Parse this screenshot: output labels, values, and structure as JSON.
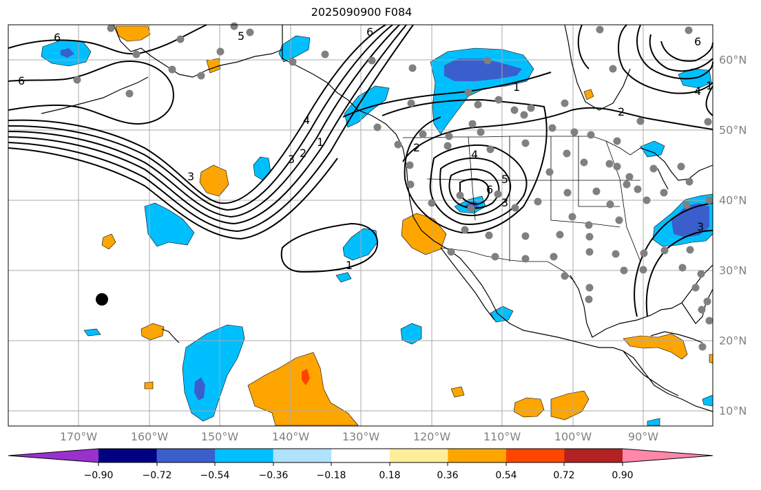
{
  "title": "2025090900 F084",
  "lon_labels": [
    "170°W",
    "160°W",
    "150°W",
    "140°W",
    "130°W",
    "120°W",
    "110°W",
    "100°W",
    "90°W"
  ],
  "lat_labels": [
    "60°N",
    "50°N",
    "40°N",
    "30°N",
    "20°N",
    "10°N"
  ],
  "colorbar": {
    "tick_labels": [
      "−0.90",
      "−0.72",
      "−0.54",
      "−0.36",
      "−0.18",
      "0.18",
      "0.36",
      "0.54",
      "0.72",
      "0.90"
    ],
    "colors": [
      "#9932cc",
      "#000080",
      "#3a5fcd",
      "#00bfff",
      "#b0e2ff",
      "#ffffff",
      "#ffee99",
      "#ffa500",
      "#ff4500",
      "#b22222",
      "#ff88aa"
    ]
  },
  "contour_labels": [
    "6",
    "6",
    "6",
    "5",
    "6",
    "4",
    "3",
    "2",
    "1",
    "1",
    "2",
    "4",
    "5",
    "6",
    "3",
    "1",
    "1",
    "2",
    "4",
    "3",
    "3"
  ],
  "marker_color": "#808080",
  "colors": {
    "land": "#000000",
    "grid": "#aaaaaa",
    "contour": "#000000"
  }
}
